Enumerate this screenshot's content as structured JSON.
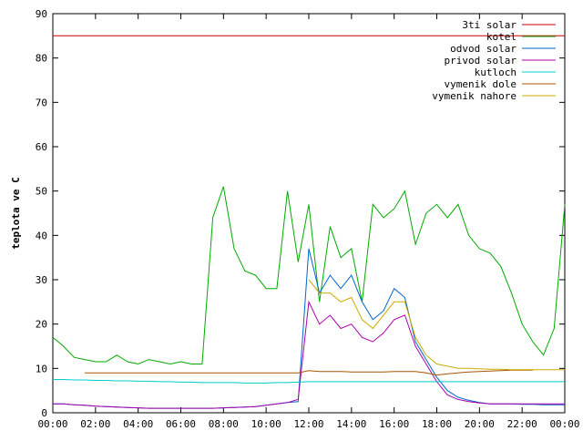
{
  "chart_data": {
    "type": "line",
    "ylabel": "teplota ve C",
    "x": [
      0,
      0.5,
      1,
      1.5,
      2,
      2.5,
      3,
      3.5,
      4,
      4.5,
      5,
      5.5,
      6,
      6.5,
      7,
      7.5,
      8,
      8.5,
      9,
      9.5,
      10,
      10.5,
      11,
      11.5,
      12,
      12.5,
      13,
      13.5,
      14,
      14.5,
      15,
      15.5,
      16,
      16.5,
      17,
      17.5,
      18,
      18.5,
      19,
      19.5,
      20,
      20.5,
      21,
      21.5,
      22,
      22.5,
      23,
      23.5,
      24
    ],
    "xlim": [
      0,
      24
    ],
    "xticks": [
      {
        "value": 0,
        "label": "00:00"
      },
      {
        "value": 2,
        "label": "02:00"
      },
      {
        "value": 4,
        "label": "04:00"
      },
      {
        "value": 6,
        "label": "06:00"
      },
      {
        "value": 8,
        "label": "08:00"
      },
      {
        "value": 10,
        "label": "10:00"
      },
      {
        "value": 12,
        "label": "12:00"
      },
      {
        "value": 14,
        "label": "14:00"
      },
      {
        "value": 16,
        "label": "16:00"
      },
      {
        "value": 18,
        "label": "18:00"
      },
      {
        "value": 20,
        "label": "20:00"
      },
      {
        "value": 22,
        "label": "22:00"
      },
      {
        "value": 24,
        "label": "00:00"
      }
    ],
    "ylim": [
      0,
      90
    ],
    "yticks": [
      0,
      10,
      20,
      30,
      40,
      50,
      60,
      70,
      80,
      90
    ],
    "legend": "top-right",
    "series": [
      {
        "name": "3ti solar",
        "color": "#cc0000",
        "values": [
          85,
          85,
          85,
          85,
          85,
          85,
          85,
          85,
          85,
          85,
          85,
          85,
          85,
          85,
          85,
          85,
          85,
          85,
          85,
          85,
          85,
          85,
          85,
          85,
          85,
          85,
          85,
          85,
          85,
          85,
          85,
          85,
          85,
          85,
          85,
          85,
          85,
          85,
          85,
          85,
          85,
          85,
          85,
          85,
          85,
          85,
          85,
          85,
          85
        ]
      },
      {
        "name": "kotel",
        "color": "#00aa00",
        "values": [
          17,
          15,
          12.5,
          12,
          11.5,
          11.5,
          13,
          11.5,
          11,
          12,
          11.5,
          11,
          11.5,
          11,
          11,
          44,
          51,
          37,
          32,
          31,
          28,
          28,
          50,
          34,
          47,
          25,
          42,
          35,
          37,
          25,
          47,
          44,
          46,
          50,
          38,
          45,
          47,
          44,
          47,
          40,
          37,
          36,
          33,
          27,
          20,
          16,
          13,
          19,
          47
        ]
      },
      {
        "name": "odvod solar",
        "color": "#0066cc",
        "values": [
          2,
          2,
          1.8,
          1.7,
          1.5,
          1.4,
          1.3,
          1.2,
          1.1,
          1,
          1,
          1,
          1,
          1,
          1,
          1,
          1.1,
          1.2,
          1.3,
          1.4,
          1.7,
          2,
          2.3,
          2.5,
          37,
          27,
          31,
          28,
          31,
          25,
          21,
          23,
          28,
          26,
          16,
          12,
          8,
          5,
          3.5,
          2.8,
          2.3,
          2,
          2,
          2,
          1.9,
          1.9,
          1.8,
          1.8,
          1.8
        ]
      },
      {
        "name": "privod solar",
        "color": "#aa00aa",
        "values": [
          2,
          2,
          1.8,
          1.7,
          1.5,
          1.4,
          1.3,
          1.2,
          1.1,
          1,
          1,
          1,
          1,
          1,
          1,
          1,
          1.1,
          1.2,
          1.3,
          1.4,
          1.7,
          2,
          2.3,
          3,
          25,
          20,
          22,
          19,
          20,
          17,
          16,
          18,
          21,
          22,
          15,
          11,
          7,
          4,
          3,
          2.5,
          2.2,
          2,
          2,
          2,
          2,
          2,
          2,
          2,
          2
        ]
      },
      {
        "name": "kutloch",
        "color": "#00cccc",
        "values": [
          7.5,
          7.5,
          7.4,
          7.4,
          7.3,
          7.3,
          7.2,
          7.2,
          7.1,
          7.1,
          7,
          7,
          6.9,
          6.9,
          6.8,
          6.8,
          6.8,
          6.8,
          6.7,
          6.7,
          6.7,
          6.8,
          6.8,
          6.9,
          7,
          7,
          7,
          7,
          7,
          7,
          7,
          7,
          7,
          7,
          7,
          7,
          7,
          7,
          7,
          7,
          7,
          7,
          7,
          7,
          7,
          7,
          7,
          7,
          7
        ]
      },
      {
        "name": "vymenik dole",
        "color": "#aa5500",
        "values": [
          null,
          null,
          null,
          9,
          9,
          9,
          9,
          9,
          9,
          9,
          9,
          9,
          9,
          9,
          9,
          9,
          9,
          9,
          9,
          9,
          9,
          9,
          9,
          9,
          9.5,
          9.3,
          9.3,
          9.3,
          9.2,
          9.2,
          9.2,
          9.2,
          9.3,
          9.3,
          9.3,
          9,
          8.5,
          8.8,
          9,
          9.2,
          9.3,
          9.4,
          9.5,
          9.6,
          9.6,
          9.6,
          null,
          null,
          null
        ]
      },
      {
        "name": "vymenik nahore",
        "color": "#ccaa00",
        "values": [
          null,
          null,
          null,
          null,
          null,
          null,
          null,
          null,
          null,
          null,
          null,
          null,
          null,
          null,
          null,
          null,
          null,
          null,
          null,
          null,
          null,
          null,
          null,
          null,
          30,
          27,
          27,
          25,
          26,
          21,
          19,
          22,
          25,
          25,
          17,
          13,
          11,
          10.5,
          10,
          10,
          9.9,
          9.8,
          9.8,
          9.7,
          9.7,
          9.7,
          9.7,
          9.7,
          9.7
        ]
      }
    ]
  }
}
